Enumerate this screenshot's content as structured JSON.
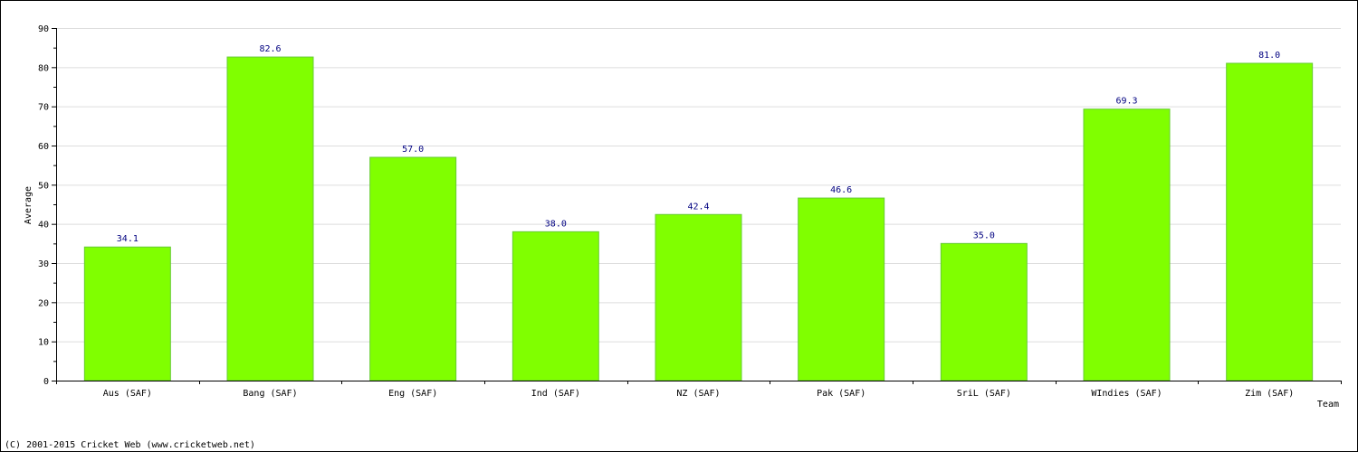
{
  "chart_data": {
    "type": "bar",
    "title": "",
    "xlabel": "Team",
    "ylabel": "Average",
    "ylim": [
      0,
      90
    ],
    "ytick_step": 10,
    "grid": true,
    "categories": [
      "Aus (SAF)",
      "Bang (SAF)",
      "Eng (SAF)",
      "Ind (SAF)",
      "NZ (SAF)",
      "Pak (SAF)",
      "SriL (SAF)",
      "WIndies (SAF)",
      "Zim (SAF)"
    ],
    "values": [
      34.1,
      82.6,
      57.0,
      38.0,
      42.4,
      46.6,
      35.0,
      69.3,
      81.0
    ],
    "data_labels": [
      "34.1",
      "82.6",
      "57.0",
      "38.0",
      "42.4",
      "46.6",
      "35.0",
      "69.3",
      "81.0"
    ],
    "colors": {
      "bar_fill": "#80ff00",
      "bar_stroke": "#66cc33",
      "data_label": "#000080",
      "grid": "#dddddd",
      "axis": "#000000"
    }
  },
  "footer": {
    "copyright": "(C) 2001-2015 Cricket Web (www.cricketweb.net)"
  }
}
